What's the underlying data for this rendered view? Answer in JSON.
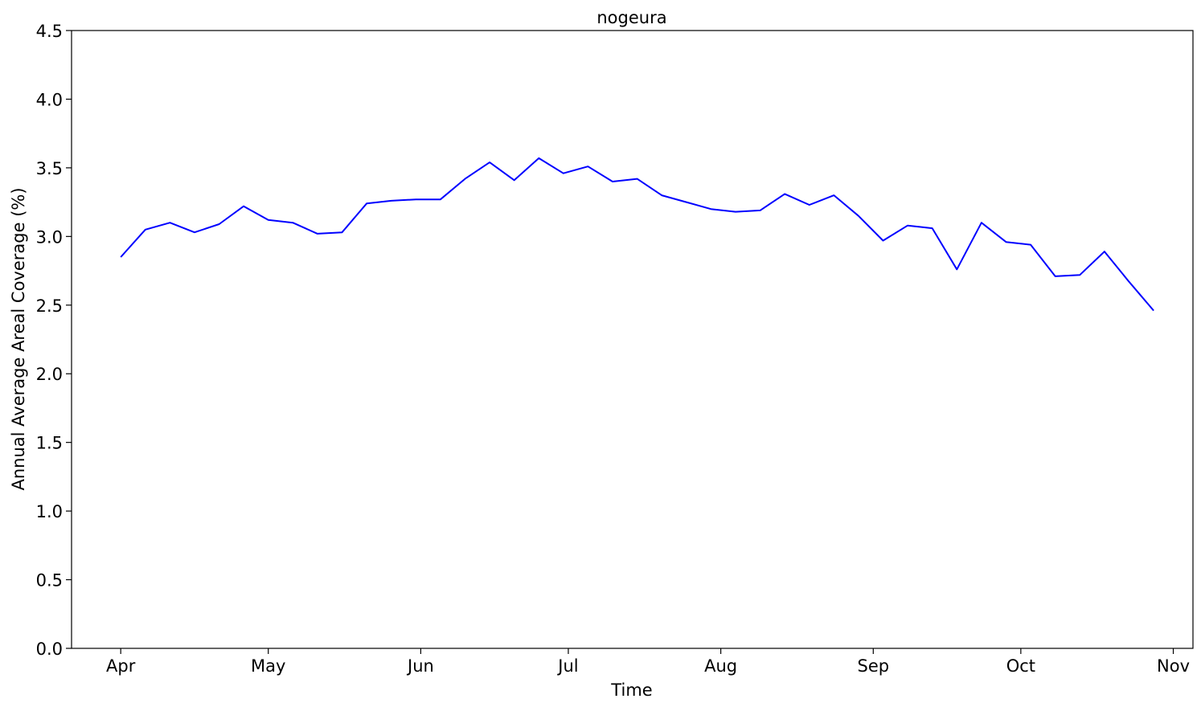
{
  "chart_data": {
    "type": "line",
    "title": "nogeura",
    "xlabel": "Time",
    "ylabel": "Annual Average Areal Coverage (%)",
    "ylim": [
      0,
      4.5
    ],
    "xlim": [
      "2000-03-22",
      "2000-11-05"
    ],
    "yticks": [
      "0.0",
      "0.5",
      "1.0",
      "1.5",
      "2.0",
      "2.5",
      "3.0",
      "3.5",
      "4.0",
      "4.5"
    ],
    "xticks": [
      {
        "label": "Apr",
        "date": "2000-04-01"
      },
      {
        "label": "May",
        "date": "2000-05-01"
      },
      {
        "label": "Jun",
        "date": "2000-06-01"
      },
      {
        "label": "Jul",
        "date": "2000-07-01"
      },
      {
        "label": "Aug",
        "date": "2000-08-01"
      },
      {
        "label": "Sep",
        "date": "2000-09-01"
      },
      {
        "label": "Oct",
        "date": "2000-10-01"
      },
      {
        "label": "Nov",
        "date": "2000-11-01"
      }
    ],
    "line_color": "#0000ff",
    "grid": false,
    "legend": "none",
    "series": [
      {
        "x": [
          "2000-04-01",
          "2000-04-06",
          "2000-04-11",
          "2000-04-16",
          "2000-04-21",
          "2000-04-26",
          "2000-05-01",
          "2000-05-06",
          "2000-05-11",
          "2000-05-16",
          "2000-05-21",
          "2000-05-26",
          "2000-05-31",
          "2000-06-05",
          "2000-06-10",
          "2000-06-15",
          "2000-06-20",
          "2000-06-25",
          "2000-06-30",
          "2000-07-05",
          "2000-07-10",
          "2000-07-15",
          "2000-07-20",
          "2000-07-25",
          "2000-07-30",
          "2000-08-04",
          "2000-08-09",
          "2000-08-14",
          "2000-08-19",
          "2000-08-24",
          "2000-08-29",
          "2000-09-03",
          "2000-09-08",
          "2000-09-13",
          "2000-09-18",
          "2000-09-23",
          "2000-09-28",
          "2000-10-03",
          "2000-10-08",
          "2000-10-13",
          "2000-10-18",
          "2000-10-23",
          "2000-10-28"
        ],
        "values": [
          2.85,
          3.05,
          3.1,
          3.03,
          3.09,
          3.22,
          3.12,
          3.1,
          3.02,
          3.03,
          3.24,
          3.26,
          3.27,
          3.27,
          3.42,
          3.54,
          3.41,
          3.57,
          3.46,
          3.51,
          3.4,
          3.42,
          3.3,
          3.25,
          3.2,
          3.18,
          3.19,
          3.31,
          3.23,
          3.3,
          3.15,
          2.97,
          3.08,
          3.06,
          2.76,
          3.1,
          2.96,
          2.94,
          2.71,
          2.72,
          2.89,
          2.67,
          2.46
        ]
      }
    ]
  }
}
